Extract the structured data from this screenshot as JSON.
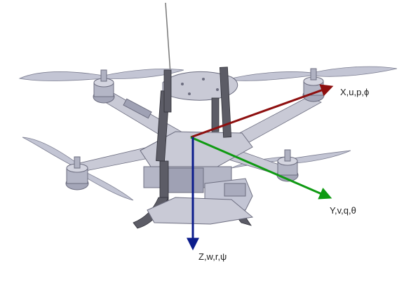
{
  "axes": {
    "x": {
      "label": "X,u,p,ϕ",
      "color": "#8e0f0f"
    },
    "y": {
      "label": "Y,v,q,θ",
      "color": "#0f9a12"
    },
    "z": {
      "label": "Z,w,r,ψ",
      "color": "#0c1d8c"
    }
  },
  "drone": {
    "body_color": "#c9cad6",
    "shadow_color": "#8e8fa0",
    "outline_color": "#6d6e80"
  }
}
